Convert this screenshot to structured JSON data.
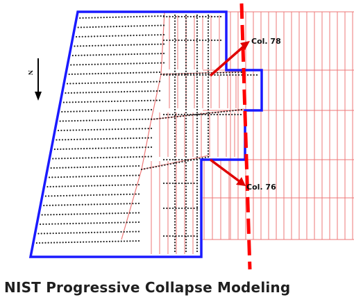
{
  "caption": "NIST Progressive Collapse Modeling",
  "north_label": "N",
  "columns": [
    {
      "label": "Col. 78"
    },
    {
      "label": "Col. 76"
    }
  ],
  "colors": {
    "outline": "#1a1aff",
    "framing": "#ee7777",
    "arrow": "#e00000",
    "cut_line": "#ff0000",
    "dots": "#222222"
  }
}
